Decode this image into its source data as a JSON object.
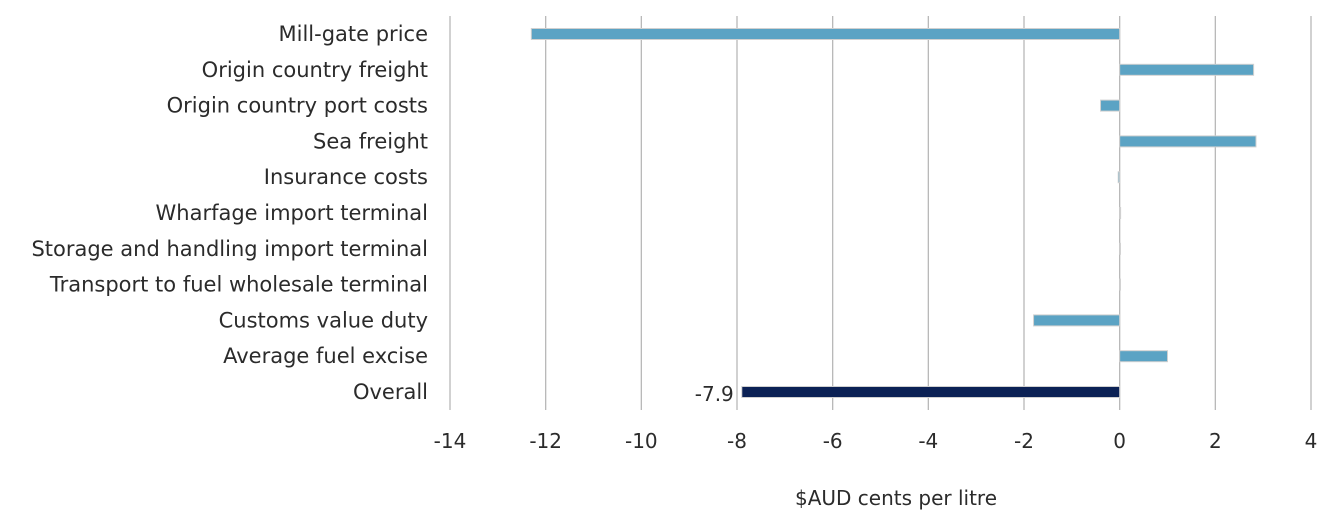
{
  "chart_data": {
    "type": "bar",
    "orientation": "horizontal",
    "title": "",
    "xlabel": "$AUD cents per litre",
    "ylabel": "",
    "xlim": [
      -14,
      4
    ],
    "xticks": [
      -14,
      -12,
      -10,
      -8,
      -6,
      -4,
      -2,
      0,
      2,
      4
    ],
    "xtick_labels": [
      "-14",
      "-12",
      "-10",
      "-8",
      "-6",
      "-4",
      "-2",
      "0",
      "2",
      "4"
    ],
    "grid": "vertical",
    "legend": "none",
    "categories": [
      "Mill-gate price",
      "Origin country freight",
      "Origin country port costs",
      "Sea freight",
      "Insurance costs",
      "Wharfage import terminal",
      "Storage and handling import terminal",
      "Transport to fuel wholesale terminal",
      "Customs value duty",
      "Average fuel excise",
      "Overall"
    ],
    "values": [
      -12.3,
      2.8,
      -0.4,
      2.85,
      -0.03,
      0.02,
      0,
      0,
      -1.8,
      1.0,
      -7.9
    ],
    "bar_colors": [
      "#5ba3c4",
      "#5ba3c4",
      "#5ba3c4",
      "#5ba3c4",
      "#5ba3c4",
      "#5ba3c4",
      "#5ba3c4",
      "#5ba3c4",
      "#5ba3c4",
      "#5ba3c4",
      "#0b2155"
    ],
    "data_labels": [
      {
        "category": "Overall",
        "text": "-7.9"
      }
    ],
    "gridline_color": "#b8b8b8"
  }
}
